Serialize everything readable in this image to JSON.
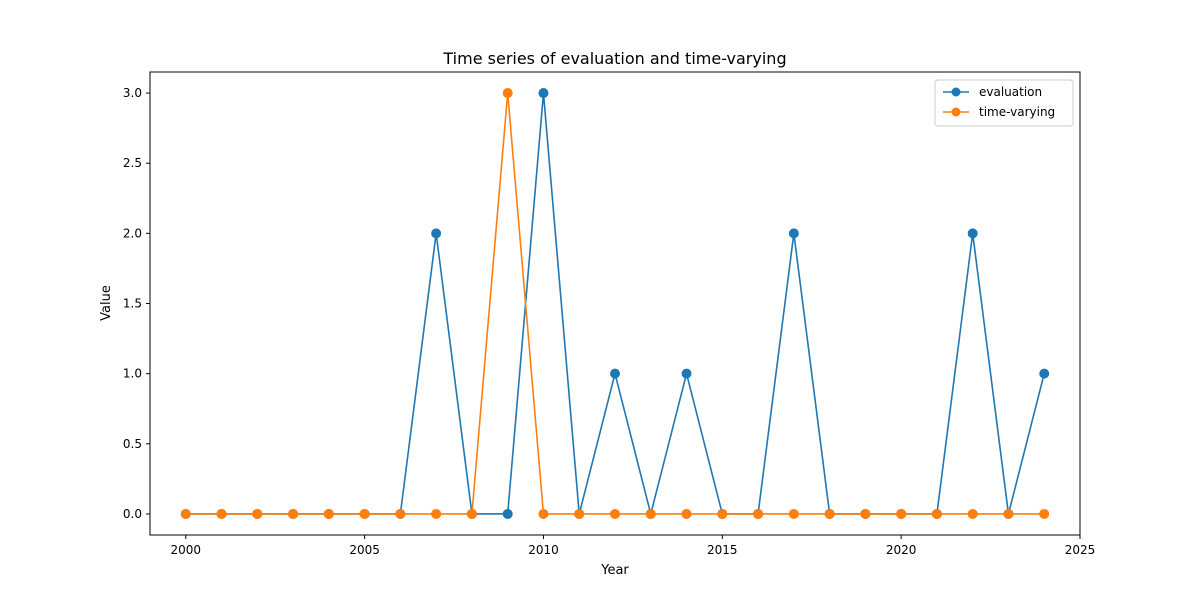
{
  "chart_data": {
    "type": "line",
    "title": "Time series of evaluation and time-varying",
    "xlabel": "Year",
    "ylabel": "Value",
    "xlim": [
      1999,
      2025
    ],
    "ylim": [
      -0.15,
      3.15
    ],
    "xticks": [
      2000,
      2005,
      2010,
      2015,
      2020,
      2025
    ],
    "yticks": [
      0.0,
      0.5,
      1.0,
      1.5,
      2.0,
      2.5,
      3.0
    ],
    "xtick_labels": [
      "2000",
      "2005",
      "2010",
      "2015",
      "2020",
      "2025"
    ],
    "ytick_labels": [
      "0.0",
      "0.5",
      "1.0",
      "1.5",
      "2.0",
      "2.5",
      "3.0"
    ],
    "grid": false,
    "legend_position": "top-right",
    "x": [
      2000,
      2001,
      2002,
      2003,
      2004,
      2005,
      2006,
      2007,
      2008,
      2009,
      2010,
      2011,
      2012,
      2013,
      2014,
      2015,
      2016,
      2017,
      2018,
      2019,
      2020,
      2021,
      2022,
      2023,
      2024
    ],
    "series": [
      {
        "name": "evaluation",
        "color": "#1f77b4",
        "values": [
          0,
          0,
          0,
          0,
          0,
          0,
          0,
          2,
          0,
          0,
          3,
          0,
          1,
          0,
          1,
          0,
          0,
          2,
          0,
          0,
          0,
          0,
          2,
          0,
          1
        ]
      },
      {
        "name": "time-varying",
        "color": "#ff7f0e",
        "values": [
          0,
          0,
          0,
          0,
          0,
          0,
          0,
          0,
          0,
          3,
          0,
          0,
          0,
          0,
          0,
          0,
          0,
          0,
          0,
          0,
          0,
          0,
          0,
          0,
          0
        ]
      }
    ]
  }
}
